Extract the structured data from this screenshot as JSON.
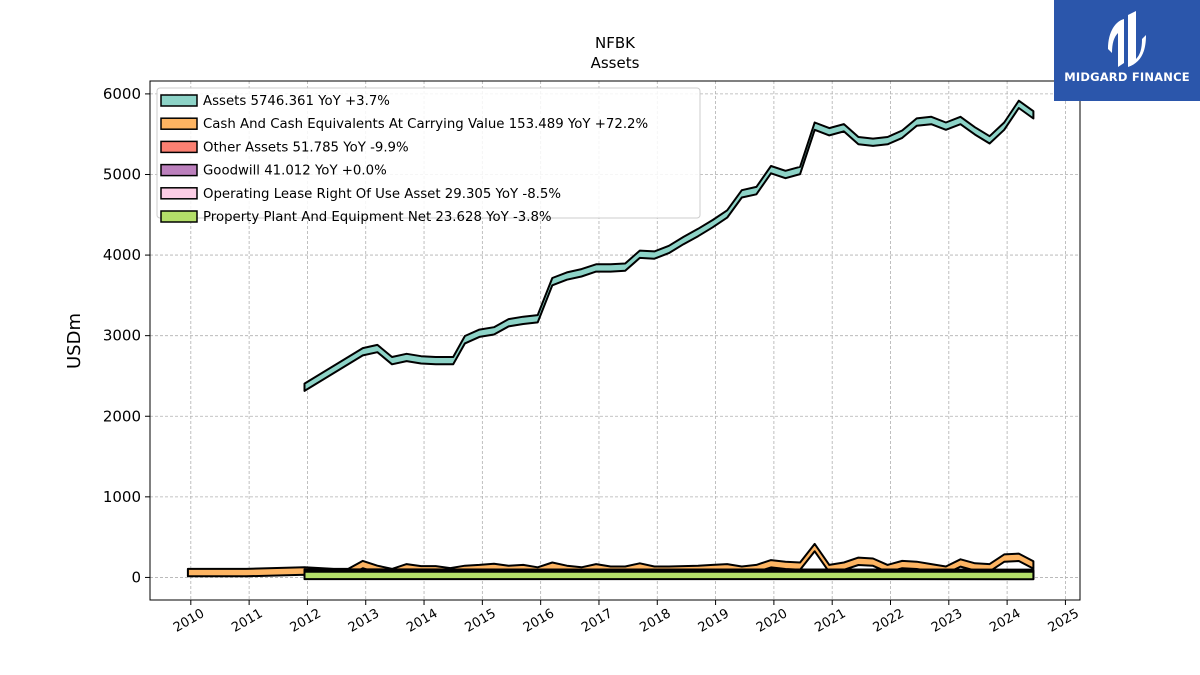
{
  "brand": {
    "name": "MIDGARD FINANCE",
    "logo_icon": "midgard-finance-logo-icon",
    "background": "#2b56ab"
  },
  "chart_data": {
    "type": "area",
    "title": "NFBK",
    "subtitle": "Assets",
    "ylabel": "USDm",
    "xlabel": "",
    "ylim": [
      -280,
      6160
    ],
    "xlim": [
      2009.3,
      2025.25
    ],
    "yticks": [
      0,
      1000,
      2000,
      3000,
      4000,
      5000,
      6000
    ],
    "xticks": [
      2010,
      2011,
      2012,
      2013,
      2014,
      2015,
      2016,
      2017,
      2018,
      2019,
      2020,
      2021,
      2022,
      2023,
      2024,
      2025
    ],
    "grid": true,
    "legend_position": "top-left",
    "legend": [
      "Assets  5746.361 YoY +3.7%",
      "Cash And Cash Equivalents At Carrying Value  153.489 YoY +72.2%",
      "Other Assets  51.785 YoY -9.9%",
      "Goodwill  41.012 YoY +0.0%",
      "Operating Lease Right Of Use Asset  29.305 YoY -8.5%",
      "Property Plant And Equipment Net  23.628 YoY -3.8%"
    ],
    "series": [
      {
        "name": "Assets",
        "color": "#8dd3c7",
        "x": [
          2011.95,
          2012.95,
          2013.2,
          2013.45,
          2013.7,
          2013.95,
          2014.2,
          2014.5,
          2014.7,
          2014.95,
          2015.2,
          2015.45,
          2015.7,
          2015.95,
          2016.2,
          2016.45,
          2016.7,
          2016.95,
          2017.2,
          2017.45,
          2017.7,
          2017.95,
          2018.2,
          2018.45,
          2018.7,
          2018.95,
          2019.2,
          2019.45,
          2019.7,
          2019.95,
          2020.2,
          2020.45,
          2020.7,
          2020.95,
          2021.2,
          2021.45,
          2021.7,
          2021.95,
          2022.2,
          2022.45,
          2022.7,
          2022.95,
          2023.2,
          2023.45,
          2023.7,
          2023.95,
          2024.2,
          2024.45
        ],
        "values": [
          2360,
          2800,
          2840,
          2690,
          2730,
          2700,
          2690,
          2690,
          2950,
          3030,
          3060,
          3160,
          3190,
          3210,
          3670,
          3740,
          3780,
          3840,
          3840,
          3850,
          4010,
          4000,
          4070,
          4180,
          4280,
          4390,
          4510,
          4760,
          4800,
          5060,
          5000,
          5050,
          5600,
          5530,
          5580,
          5420,
          5400,
          5420,
          5500,
          5650,
          5670,
          5600,
          5670,
          5540,
          5430,
          5600,
          5870,
          5740
        ]
      },
      {
        "name": "Cash And Cash Equivalents At Carrying Value",
        "color": "#fdb462",
        "x": [
          2009.95,
          2010.95,
          2011.95,
          2012.45,
          2012.7,
          2012.95,
          2013.2,
          2013.45,
          2013.7,
          2013.95,
          2014.2,
          2014.45,
          2014.7,
          2014.95,
          2015.2,
          2015.45,
          2015.7,
          2015.95,
          2016.2,
          2016.45,
          2016.7,
          2016.95,
          2017.2,
          2017.45,
          2017.7,
          2017.95,
          2018.2,
          2018.45,
          2018.7,
          2018.95,
          2019.2,
          2019.45,
          2019.7,
          2019.95,
          2020.2,
          2020.45,
          2020.7,
          2020.95,
          2021.2,
          2021.45,
          2021.7,
          2021.95,
          2022.2,
          2022.45,
          2022.7,
          2022.95,
          2023.2,
          2023.45,
          2023.7,
          2023.95,
          2024.2,
          2024.45
        ],
        "values": [
          60,
          60,
          80,
          60,
          60,
          160,
          100,
          60,
          120,
          95,
          95,
          70,
          100,
          110,
          125,
          100,
          110,
          80,
          140,
          100,
          80,
          120,
          90,
          90,
          130,
          90,
          90,
          95,
          100,
          110,
          120,
          90,
          110,
          170,
          150,
          140,
          370,
          110,
          140,
          200,
          190,
          110,
          160,
          150,
          120,
          90,
          180,
          130,
          120,
          240,
          250,
          155
        ]
      },
      {
        "name": "Other Assets",
        "color": "#fb8072",
        "x": [
          2011.95,
          2024.45
        ],
        "values": [
          54,
          52
        ]
      },
      {
        "name": "Goodwill",
        "color": "#bc80bd",
        "x": [
          2011.95,
          2024.45
        ],
        "values": [
          41,
          41
        ]
      },
      {
        "name": "Operating Lease Right Of Use Asset",
        "color": "#fccde5",
        "x": [
          2018.95,
          2024.45
        ],
        "values": [
          32,
          29
        ]
      },
      {
        "name": "Property Plant And Equipment Net",
        "color": "#b3de69",
        "x": [
          2011.95,
          2024.45
        ],
        "values": [
          25,
          24
        ]
      }
    ]
  }
}
